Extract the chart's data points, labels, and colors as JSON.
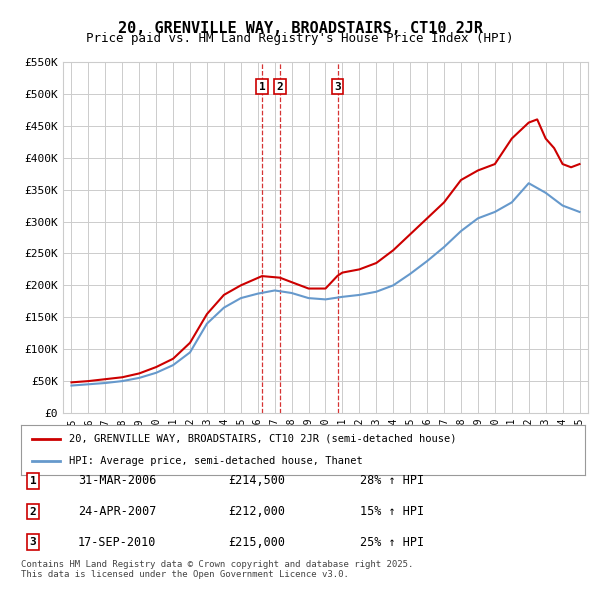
{
  "title": "20, GRENVILLE WAY, BROADSTAIRS, CT10 2JR",
  "subtitle": "Price paid vs. HM Land Registry's House Price Index (HPI)",
  "legend_label_red": "20, GRENVILLE WAY, BROADSTAIRS, CT10 2JR (semi-detached house)",
  "legend_label_blue": "HPI: Average price, semi-detached house, Thanet",
  "footer": "Contains HM Land Registry data © Crown copyright and database right 2025.\nThis data is licensed under the Open Government Licence v3.0.",
  "ylim": [
    0,
    550000
  ],
  "yticks": [
    0,
    50000,
    100000,
    150000,
    200000,
    250000,
    300000,
    350000,
    400000,
    450000,
    500000,
    550000
  ],
  "ytick_labels": [
    "£0",
    "£50K",
    "£100K",
    "£150K",
    "£200K",
    "£250K",
    "£300K",
    "£350K",
    "£400K",
    "£450K",
    "£500K",
    "£550K"
  ],
  "transactions": [
    {
      "num": 1,
      "date": "31-MAR-2006",
      "price": 214500,
      "pct": "28%",
      "dir": "↑",
      "x": 2006.25
    },
    {
      "num": 2,
      "date": "24-APR-2007",
      "price": 212000,
      "pct": "15%",
      "dir": "↑",
      "x": 2007.31
    },
    {
      "num": 3,
      "date": "17-SEP-2010",
      "price": 215000,
      "pct": "25%",
      "dir": "↑",
      "x": 2010.71
    }
  ],
  "red_color": "#cc0000",
  "blue_color": "#6699cc",
  "grid_color": "#cccccc",
  "dashed_color": "#cc0000",
  "background_color": "#ffffff",
  "red_line_x": [
    1995,
    1996,
    1997,
    1998,
    1999,
    2000,
    2001,
    2002,
    2003,
    2004,
    2005,
    2006.25,
    2007.31,
    2008,
    2009,
    2010,
    2010.71,
    2011,
    2012,
    2013,
    2014,
    2015,
    2016,
    2017,
    2018,
    2019,
    2020,
    2021,
    2022,
    2022.5,
    2023,
    2023.5,
    2024,
    2024.5,
    2025
  ],
  "red_line_y": [
    48000,
    50000,
    53000,
    56000,
    62000,
    72000,
    85000,
    110000,
    155000,
    185000,
    200000,
    214500,
    212000,
    205000,
    195000,
    195000,
    215000,
    220000,
    225000,
    235000,
    255000,
    280000,
    305000,
    330000,
    365000,
    380000,
    390000,
    430000,
    455000,
    460000,
    430000,
    415000,
    390000,
    385000,
    390000
  ],
  "blue_line_x": [
    1995,
    1996,
    1997,
    1998,
    1999,
    2000,
    2001,
    2002,
    2003,
    2004,
    2005,
    2006,
    2007,
    2008,
    2009,
    2010,
    2011,
    2012,
    2013,
    2014,
    2015,
    2016,
    2017,
    2018,
    2019,
    2020,
    2021,
    2022,
    2023,
    2024,
    2025
  ],
  "blue_line_y": [
    43000,
    45000,
    47000,
    50000,
    55000,
    63000,
    75000,
    95000,
    140000,
    165000,
    180000,
    187000,
    192000,
    188000,
    180000,
    178000,
    182000,
    185000,
    190000,
    200000,
    218000,
    238000,
    260000,
    285000,
    305000,
    315000,
    330000,
    360000,
    345000,
    325000,
    315000
  ],
  "xlim_left": 1994.5,
  "xlim_right": 2025.5,
  "xticks": [
    1995,
    1996,
    1997,
    1998,
    1999,
    2000,
    2001,
    2002,
    2003,
    2004,
    2005,
    2006,
    2007,
    2008,
    2009,
    2010,
    2011,
    2012,
    2013,
    2014,
    2015,
    2016,
    2017,
    2018,
    2019,
    2020,
    2021,
    2022,
    2023,
    2024,
    2025
  ]
}
